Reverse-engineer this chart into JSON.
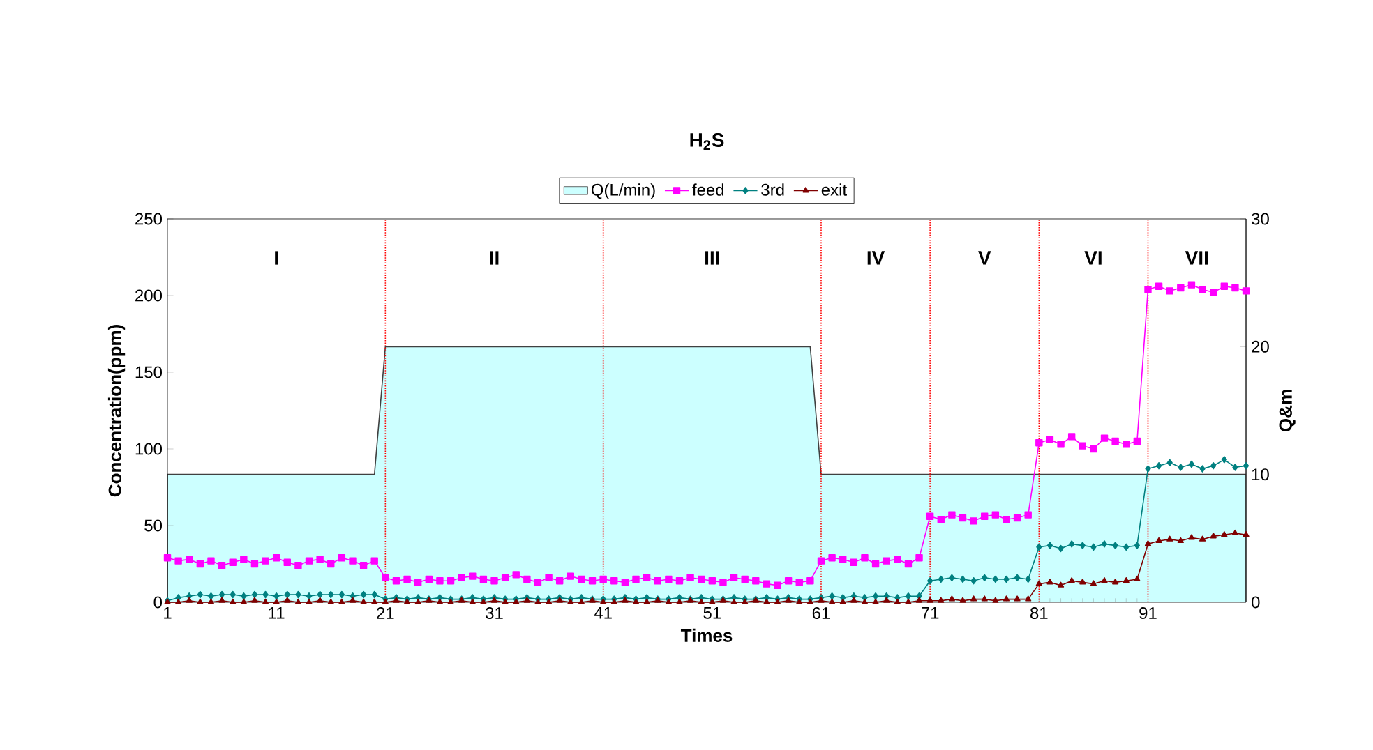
{
  "chart_data": {
    "type": "line",
    "title": "H$_{2}$S",
    "xlabel": "Times",
    "ylabel": "Concentration(ppm)",
    "y2label": "Q&m",
    "x": [
      1,
      2,
      3,
      4,
      5,
      6,
      7,
      8,
      9,
      10,
      11,
      12,
      13,
      14,
      15,
      16,
      17,
      18,
      19,
      20,
      21,
      22,
      23,
      24,
      25,
      26,
      27,
      28,
      29,
      30,
      31,
      32,
      33,
      34,
      35,
      36,
      37,
      38,
      39,
      40,
      41,
      42,
      43,
      44,
      45,
      46,
      47,
      48,
      49,
      50,
      51,
      52,
      53,
      54,
      55,
      56,
      57,
      58,
      59,
      60,
      61,
      62,
      63,
      64,
      65,
      66,
      67,
      68,
      69,
      70,
      71,
      72,
      73,
      74,
      75,
      76,
      77,
      78,
      79,
      80,
      81,
      82,
      83,
      84,
      85,
      86,
      87,
      88,
      89,
      90,
      91,
      92,
      93,
      94,
      95,
      96,
      97,
      98,
      99,
      100
    ],
    "series": [
      {
        "name": "Q(L/min)",
        "type": "area",
        "axis": "y2",
        "color": "#ccffff",
        "x": [
          1,
          20,
          21,
          60,
          61,
          100
        ],
        "values": [
          10,
          10,
          20,
          20,
          10,
          10
        ]
      },
      {
        "name": "feed",
        "color": "#ff00ff",
        "marker": "square",
        "values": [
          29,
          27,
          28,
          25,
          27,
          24,
          26,
          28,
          25,
          27,
          29,
          26,
          24,
          27,
          28,
          25,
          29,
          27,
          24,
          27,
          16,
          14,
          15,
          13,
          15,
          14,
          14,
          16,
          17,
          15,
          14,
          16,
          18,
          15,
          13,
          16,
          14,
          17,
          15,
          14,
          15,
          14,
          13,
          15,
          16,
          14,
          15,
          14,
          16,
          15,
          14,
          13,
          16,
          15,
          14,
          12,
          11,
          14,
          13,
          14,
          27,
          29,
          28,
          26,
          29,
          25,
          27,
          28,
          25,
          29,
          56,
          54,
          57,
          55,
          53,
          56,
          57,
          54,
          55,
          57,
          104,
          106,
          103,
          108,
          102,
          100,
          107,
          105,
          103,
          105,
          204,
          206,
          203,
          205,
          207,
          204,
          202,
          206,
          205,
          203
        ]
      },
      {
        "name": "3rd",
        "color": "#008080",
        "marker": "diamond",
        "values": [
          1,
          3,
          4,
          5,
          4,
          5,
          5,
          4,
          5,
          5,
          4,
          5,
          5,
          4,
          5,
          5,
          5,
          4,
          5,
          5,
          2,
          3,
          2,
          3,
          2,
          3,
          2,
          2,
          3,
          2,
          3,
          2,
          2,
          3,
          2,
          2,
          3,
          2,
          3,
          2,
          2,
          2,
          3,
          2,
          3,
          2,
          2,
          3,
          2,
          3,
          2,
          2,
          3,
          2,
          2,
          3,
          2,
          3,
          2,
          2,
          3,
          4,
          3,
          4,
          3,
          4,
          4,
          3,
          4,
          4,
          14,
          15,
          16,
          15,
          14,
          16,
          15,
          15,
          16,
          15,
          36,
          37,
          35,
          38,
          37,
          36,
          38,
          37,
          36,
          37,
          87,
          89,
          91,
          88,
          90,
          87,
          89,
          93,
          88,
          89
        ]
      },
      {
        "name": "exit",
        "color": "#800000",
        "marker": "triangle",
        "values": [
          0,
          0,
          1,
          0,
          0,
          1,
          0,
          0,
          1,
          0,
          0,
          1,
          0,
          0,
          1,
          0,
          0,
          1,
          0,
          0,
          0,
          1,
          0,
          0,
          1,
          0,
          0,
          1,
          0,
          0,
          1,
          0,
          0,
          1,
          0,
          0,
          1,
          0,
          0,
          1,
          0,
          0,
          1,
          0,
          0,
          1,
          0,
          0,
          1,
          0,
          0,
          1,
          0,
          0,
          1,
          0,
          0,
          1,
          0,
          0,
          1,
          0,
          0,
          1,
          0,
          0,
          1,
          0,
          0,
          1,
          1,
          1,
          2,
          1,
          2,
          2,
          1,
          2,
          2,
          2,
          12,
          13,
          11,
          14,
          13,
          12,
          14,
          13,
          14,
          15,
          38,
          40,
          41,
          40,
          42,
          41,
          43,
          44,
          45,
          44
        ]
      }
    ],
    "xlim": [
      1,
      100
    ],
    "xticks": [
      1,
      11,
      21,
      31,
      41,
      51,
      61,
      71,
      81,
      91
    ],
    "ylim": [
      0,
      250
    ],
    "yticks": [
      0,
      50,
      100,
      150,
      200,
      250
    ],
    "y2lim": [
      0,
      30
    ],
    "y2ticks": [
      0,
      10,
      20,
      30
    ],
    "ref_lines": [
      {
        "axis": "x",
        "value": 21,
        "color": "#ff0000",
        "line_style": "dotted"
      },
      {
        "axis": "x",
        "value": 41,
        "color": "#ff0000",
        "line_style": "dotted"
      },
      {
        "axis": "x",
        "value": 61,
        "color": "#ff0000",
        "line_style": "dotted"
      },
      {
        "axis": "x",
        "value": 71,
        "color": "#ff0000",
        "line_style": "dotted"
      },
      {
        "axis": "x",
        "value": 81,
        "color": "#ff0000",
        "line_style": "dotted"
      },
      {
        "axis": "x",
        "value": 91,
        "color": "#ff0000",
        "line_style": "dotted"
      }
    ],
    "annotations": [
      "I",
      "II",
      "III",
      "IV",
      "V",
      "VI",
      "VII"
    ],
    "legend": "top",
    "grid": false
  }
}
